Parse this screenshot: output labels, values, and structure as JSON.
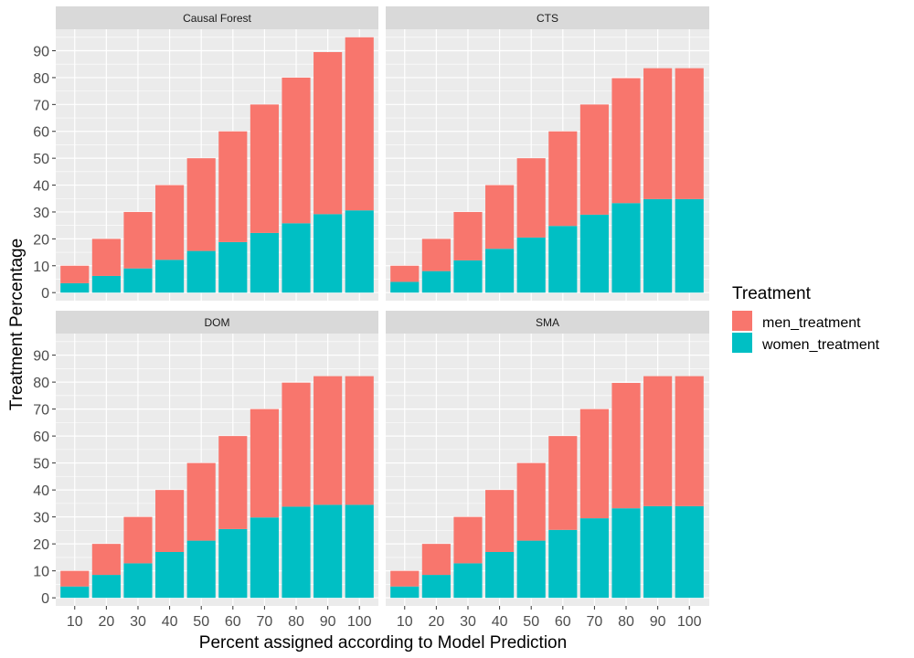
{
  "chart_data": {
    "type": "bar",
    "stacked": true,
    "xlabel": "Percent assigned according to Model Prediction",
    "ylabel": "Treatment Percentage",
    "categories": [
      "10",
      "20",
      "30",
      "40",
      "50",
      "60",
      "70",
      "80",
      "90",
      "100"
    ],
    "y_ticks": [
      "0",
      "10",
      "20",
      "30",
      "40",
      "50",
      "60",
      "70",
      "80",
      "90"
    ],
    "ylim": [
      -3,
      98
    ],
    "grid": true,
    "legend": {
      "title": "Treatment",
      "placement": "right",
      "entries": [
        {
          "name": "men_treatment",
          "color": "#F8766D"
        },
        {
          "name": "women_treatment",
          "color": "#00BFC4"
        }
      ]
    },
    "colors": {
      "men_treatment": "#F8766D",
      "women_treatment": "#00BFC4",
      "panel_bg": "#EBEBEB",
      "strip_bg": "#D9D9D9",
      "grid": "#FFFFFF"
    },
    "panels": [
      {
        "title": "Causal Forest",
        "women_treatment": [
          3.5,
          6.2,
          9.0,
          12.2,
          15.5,
          18.8,
          22.2,
          25.8,
          29.2,
          30.6
        ],
        "men_treatment": [
          6.5,
          13.8,
          21.0,
          27.8,
          34.5,
          41.2,
          47.8,
          54.2,
          60.3,
          64.4
        ]
      },
      {
        "title": "CTS",
        "women_treatment": [
          4.0,
          8.0,
          12.0,
          16.3,
          20.5,
          24.8,
          29.0,
          33.3,
          34.8,
          34.8
        ],
        "men_treatment": [
          6.0,
          12.0,
          18.0,
          23.7,
          29.5,
          35.2,
          41.0,
          46.5,
          48.7,
          48.7
        ]
      },
      {
        "title": "DOM",
        "women_treatment": [
          4.2,
          8.5,
          12.8,
          17.0,
          21.2,
          25.5,
          29.8,
          33.8,
          34.5,
          34.5
        ],
        "men_treatment": [
          5.8,
          11.5,
          17.2,
          23.0,
          28.8,
          34.5,
          40.2,
          46.0,
          47.7,
          47.7
        ]
      },
      {
        "title": "SMA",
        "women_treatment": [
          4.2,
          8.5,
          12.8,
          17.0,
          21.2,
          25.2,
          29.5,
          33.2,
          34.0,
          34.0
        ],
        "men_treatment": [
          5.8,
          11.5,
          17.2,
          23.0,
          28.8,
          34.8,
          40.5,
          46.5,
          48.2,
          48.2
        ]
      }
    ]
  }
}
